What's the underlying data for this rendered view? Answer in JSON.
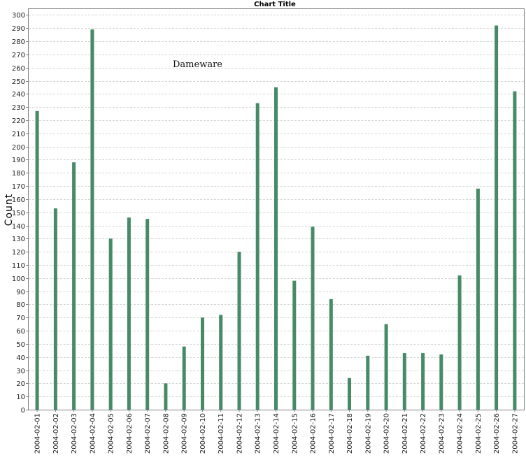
{
  "chart_data": {
    "type": "bar",
    "title": "Chart Title",
    "xlabel": "",
    "ylabel": "Count",
    "annotation": "Dameware",
    "ylim": [
      0,
      305
    ],
    "ytick_step": 10,
    "grid": true,
    "bar_color": "#468A68",
    "categories": [
      "2004-02-01",
      "2004-02-02",
      "2004-02-03",
      "2004-02-04",
      "2004-02-05",
      "2004-02-06",
      "2004-02-07",
      "2004-02-08",
      "2004-02-09",
      "2004-02-10",
      "2004-02-11",
      "2004-02-12",
      "2004-02-13",
      "2004-02-14",
      "2004-02-15",
      "2004-02-16",
      "2004-02-17",
      "2004-02-18",
      "2004-02-19",
      "2004-02-20",
      "2004-02-21",
      "2004-02-22",
      "2004-02-23",
      "2004-02-24",
      "2004-02-25",
      "2004-02-26",
      "2004-02-27"
    ],
    "values": [
      227,
      153,
      188,
      289,
      130,
      146,
      145,
      20,
      48,
      70,
      72,
      120,
      233,
      245,
      98,
      139,
      84,
      24,
      41,
      65,
      43,
      43,
      42,
      102,
      168,
      292,
      242
    ]
  }
}
